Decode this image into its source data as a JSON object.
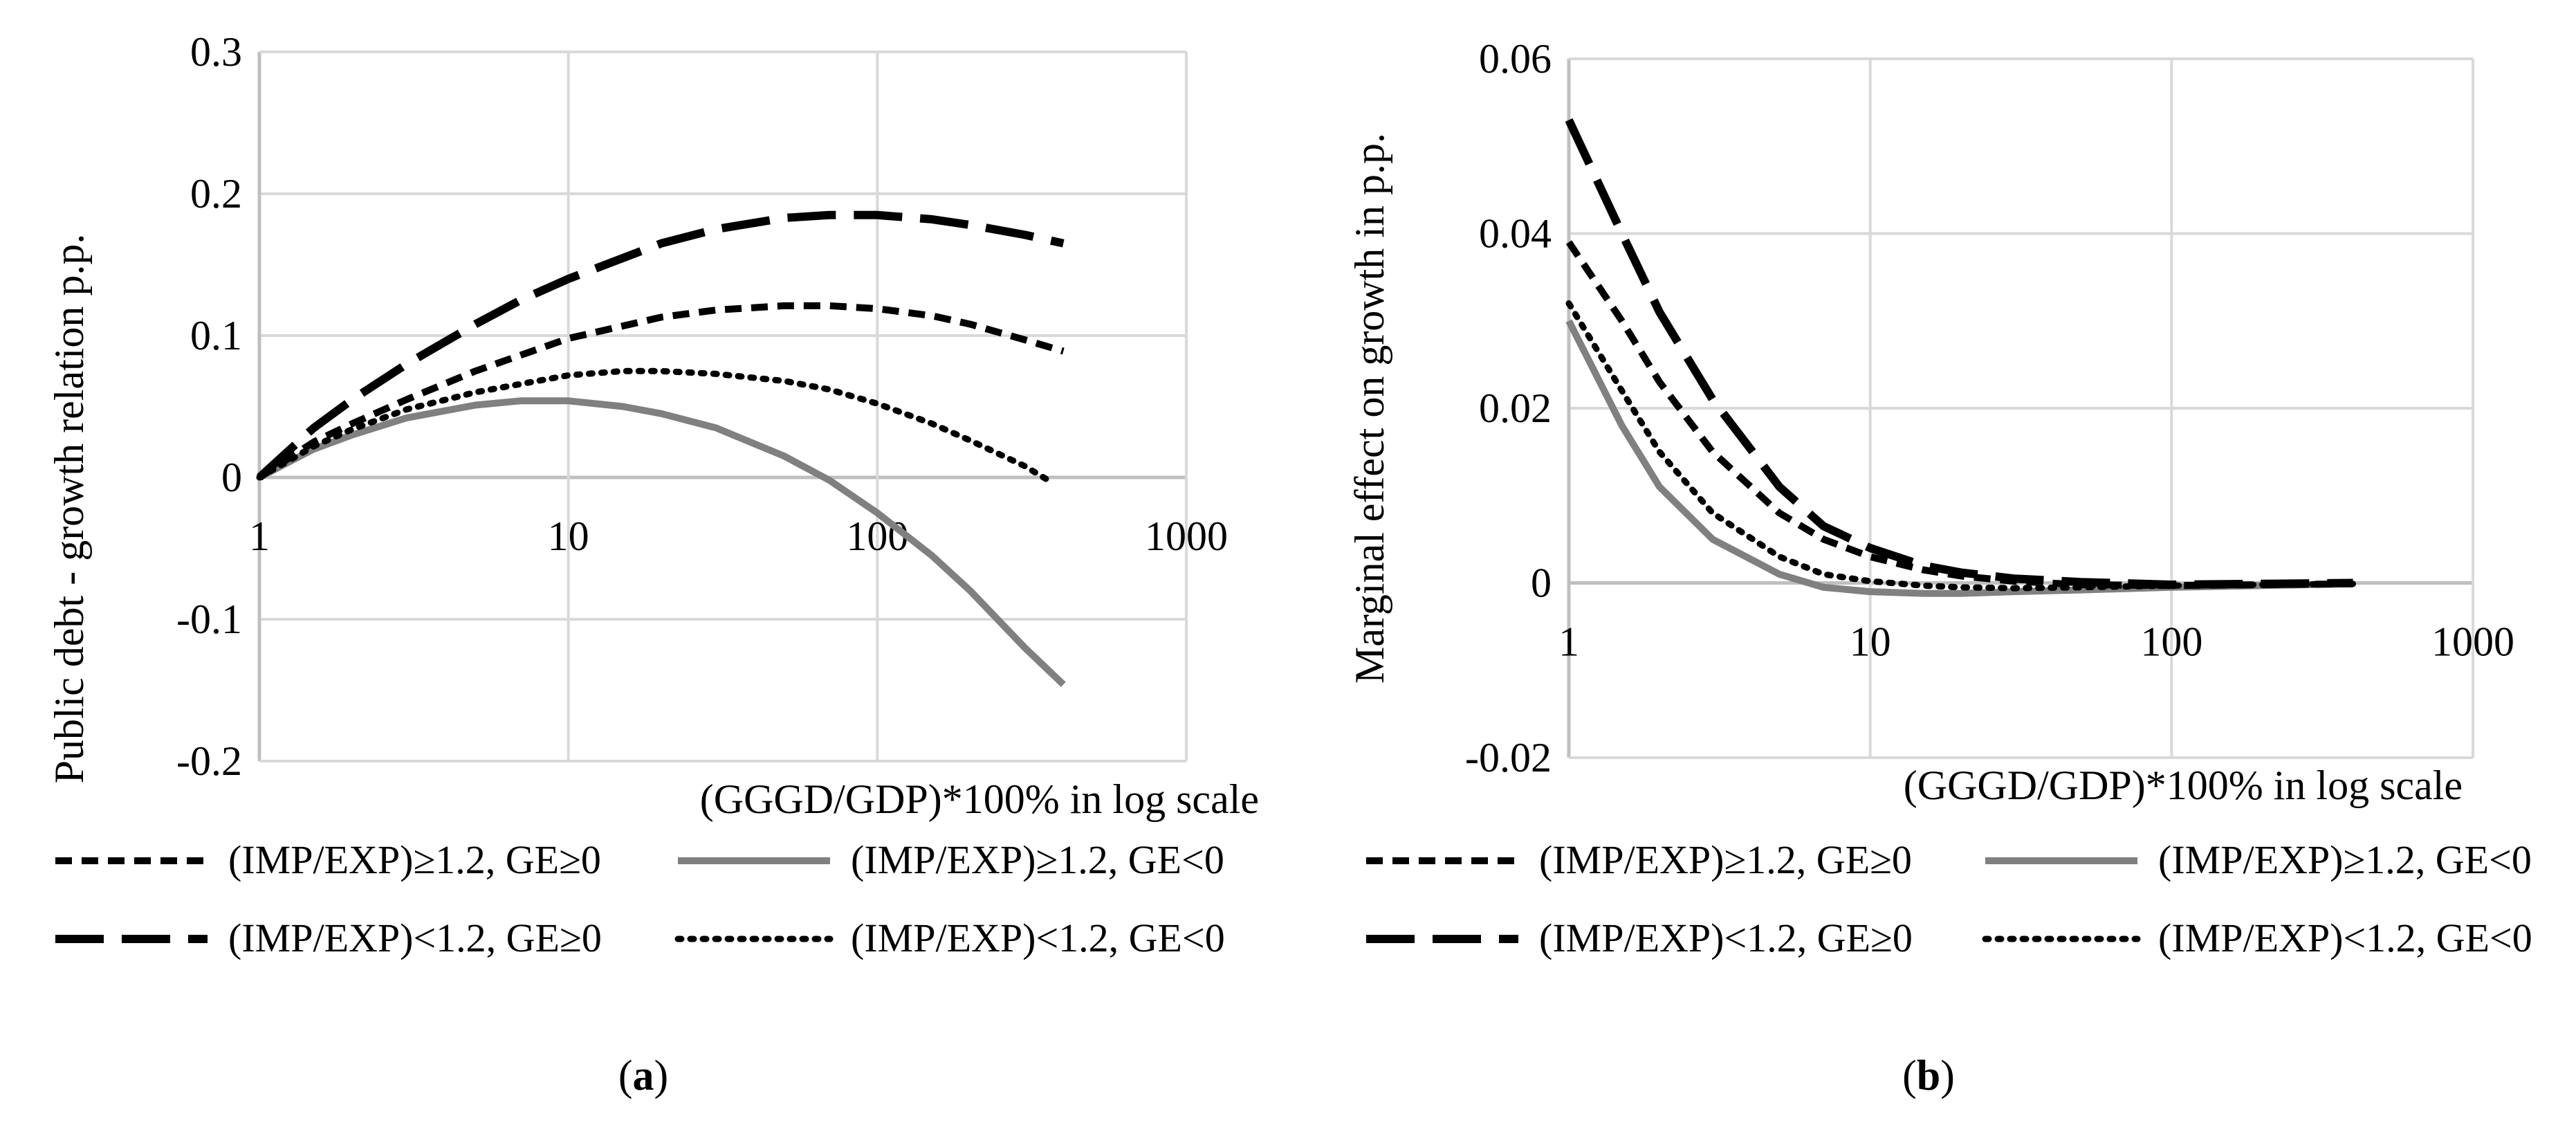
{
  "chart_data": [
    {
      "id": "a",
      "type": "line",
      "caption_letter": "a",
      "ylabel": "Public debt - growth relation p.p.",
      "xlabel": "(GGGD/GDP)*100% in log scale",
      "xscale": "log",
      "xlim": [
        1,
        1000
      ],
      "ylim": [
        -0.2,
        0.3
      ],
      "x_ticks": [
        "1",
        "10",
        "100",
        "1000"
      ],
      "y_ticks": [
        "0.3",
        "0.2",
        "0.1",
        "0",
        "-0.1",
        "-0.2"
      ],
      "grid": true,
      "legend_position": "bottom",
      "series": [
        {
          "name": "(IMP/EXP)≥1.2, GE≥0",
          "style": "short-dash",
          "color": "#000000",
          "x": [
            1,
            1.5,
            2,
            3,
            5,
            10,
            20,
            30,
            50,
            70,
            100,
            150,
            200,
            300,
            400
          ],
          "y": [
            0,
            0.025,
            0.038,
            0.055,
            0.075,
            0.098,
            0.113,
            0.118,
            0.121,
            0.121,
            0.119,
            0.114,
            0.108,
            0.097,
            0.089
          ]
        },
        {
          "name": "(IMP/EXP)≥1.2, GE<0",
          "style": "solid",
          "color": "#808080",
          "x": [
            1,
            1.5,
            2,
            3,
            5,
            7,
            10,
            15,
            20,
            30,
            50,
            70,
            100,
            150,
            200,
            300,
            400
          ],
          "y": [
            0,
            0.02,
            0.03,
            0.042,
            0.051,
            0.054,
            0.054,
            0.05,
            0.045,
            0.035,
            0.015,
            -0.002,
            -0.025,
            -0.055,
            -0.08,
            -0.12,
            -0.146
          ]
        },
        {
          "name": "(IMP/EXP)<1.2, GE≥0",
          "style": "long-dash",
          "color": "#000000",
          "x": [
            1,
            1.5,
            2,
            3,
            5,
            7,
            10,
            20,
            30,
            50,
            70,
            100,
            150,
            200,
            300,
            400
          ],
          "y": [
            0,
            0.035,
            0.055,
            0.08,
            0.108,
            0.125,
            0.14,
            0.165,
            0.175,
            0.183,
            0.185,
            0.185,
            0.182,
            0.178,
            0.171,
            0.165
          ]
        },
        {
          "name": "(IMP/EXP)<1.2, GE<0",
          "style": "dotted",
          "color": "#000000",
          "x": [
            1,
            1.5,
            2,
            3,
            5,
            10,
            15,
            20,
            30,
            50,
            70,
            100,
            150,
            200,
            300,
            370
          ],
          "y": [
            0,
            0.022,
            0.034,
            0.048,
            0.06,
            0.072,
            0.075,
            0.075,
            0.073,
            0.068,
            0.062,
            0.052,
            0.038,
            0.026,
            0.008,
            -0.004
          ]
        }
      ]
    },
    {
      "id": "b",
      "type": "line",
      "caption_letter": "b",
      "ylabel": "Marginal effect on growth in p.p.",
      "xlabel": "(GGGD/GDP)*100% in log scale",
      "xscale": "log",
      "xlim": [
        1,
        1000
      ],
      "ylim": [
        -0.02,
        0.06
      ],
      "x_ticks": [
        "1",
        "10",
        "100",
        "1000"
      ],
      "y_ticks": [
        "0.06",
        "0.04",
        "0.02",
        "0",
        "-0.02"
      ],
      "grid": true,
      "legend_position": "bottom",
      "series": [
        {
          "name": "(IMP/EXP)≥1.2, GE≥0",
          "style": "short-dash",
          "color": "#000000",
          "x": [
            1,
            1.5,
            2,
            3,
            5,
            7,
            10,
            15,
            20,
            30,
            50,
            100,
            200,
            400
          ],
          "y": [
            0.039,
            0.03,
            0.023,
            0.015,
            0.008,
            0.005,
            0.003,
            0.0015,
            0.0008,
            0.0002,
            -0.0002,
            -0.0003,
            -0.0002,
            -0.0001
          ]
        },
        {
          "name": "(IMP/EXP)≥1.2, GE<0",
          "style": "solid",
          "color": "#808080",
          "x": [
            1,
            1.5,
            2,
            3,
            5,
            7,
            10,
            15,
            20,
            30,
            50,
            100,
            200,
            400
          ],
          "y": [
            0.03,
            0.018,
            0.011,
            0.005,
            0.001,
            -0.0005,
            -0.001,
            -0.0012,
            -0.0012,
            -0.001,
            -0.0008,
            -0.0005,
            -0.0003,
            -0.0001
          ]
        },
        {
          "name": "(IMP/EXP)<1.2, GE≥0",
          "style": "long-dash",
          "color": "#000000",
          "x": [
            1,
            1.5,
            2,
            3,
            5,
            7,
            10,
            15,
            20,
            30,
            50,
            100,
            200,
            400
          ],
          "y": [
            0.053,
            0.04,
            0.031,
            0.021,
            0.011,
            0.0065,
            0.004,
            0.002,
            0.0012,
            0.0005,
            0.0001,
            -0.0002,
            -0.0001,
            0
          ]
        },
        {
          "name": "(IMP/EXP)<1.2, GE<0",
          "style": "dotted",
          "color": "#000000",
          "x": [
            1,
            1.5,
            2,
            3,
            5,
            7,
            10,
            15,
            20,
            30,
            50,
            100,
            200,
            400
          ],
          "y": [
            0.032,
            0.022,
            0.015,
            0.008,
            0.003,
            0.001,
            0.0002,
            -0.0003,
            -0.0005,
            -0.0006,
            -0.0005,
            -0.0003,
            -0.0002,
            -0.0001
          ]
        }
      ]
    }
  ]
}
